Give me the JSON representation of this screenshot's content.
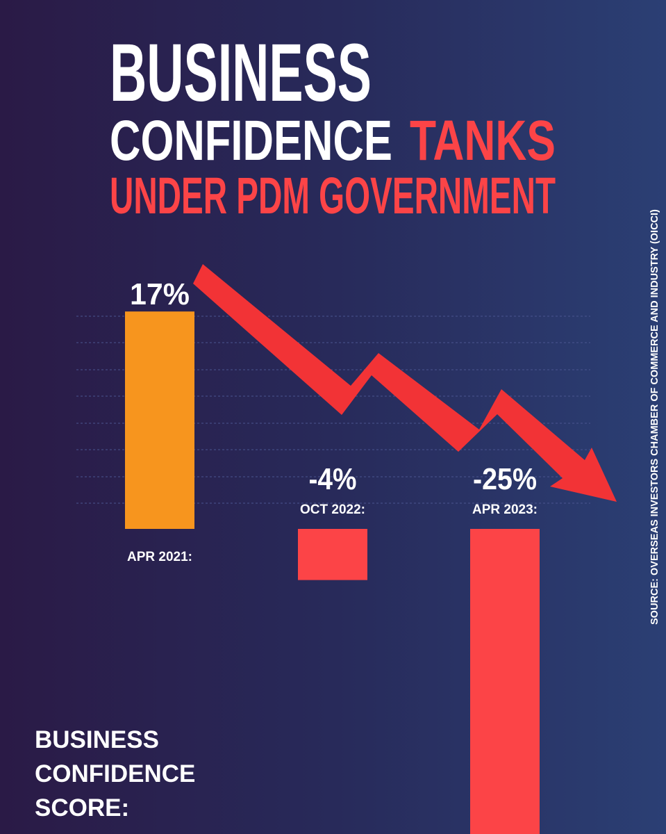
{
  "chart_data": {
    "type": "bar",
    "title_parts": [
      "BUSINESS",
      "CONFIDENCE",
      "TANKS",
      "UNDER PDM GOVERNMENT"
    ],
    "categories": [
      "APR 2021:",
      "OCT 2022:",
      "APR 2023:"
    ],
    "values": [
      17,
      -4,
      -25
    ],
    "value_labels": [
      "17%",
      "-4%",
      "-25%"
    ],
    "colors": [
      "#f7951e",
      "#fc4447",
      "#fc4447"
    ],
    "ylabel": "BUSINESS CONFIDENCE SCORE:",
    "source": "SOURCE: OVERSEAS INVESTORS CHAMBER OF COMMERCE AND INDUSTRY (OICCI)"
  }
}
